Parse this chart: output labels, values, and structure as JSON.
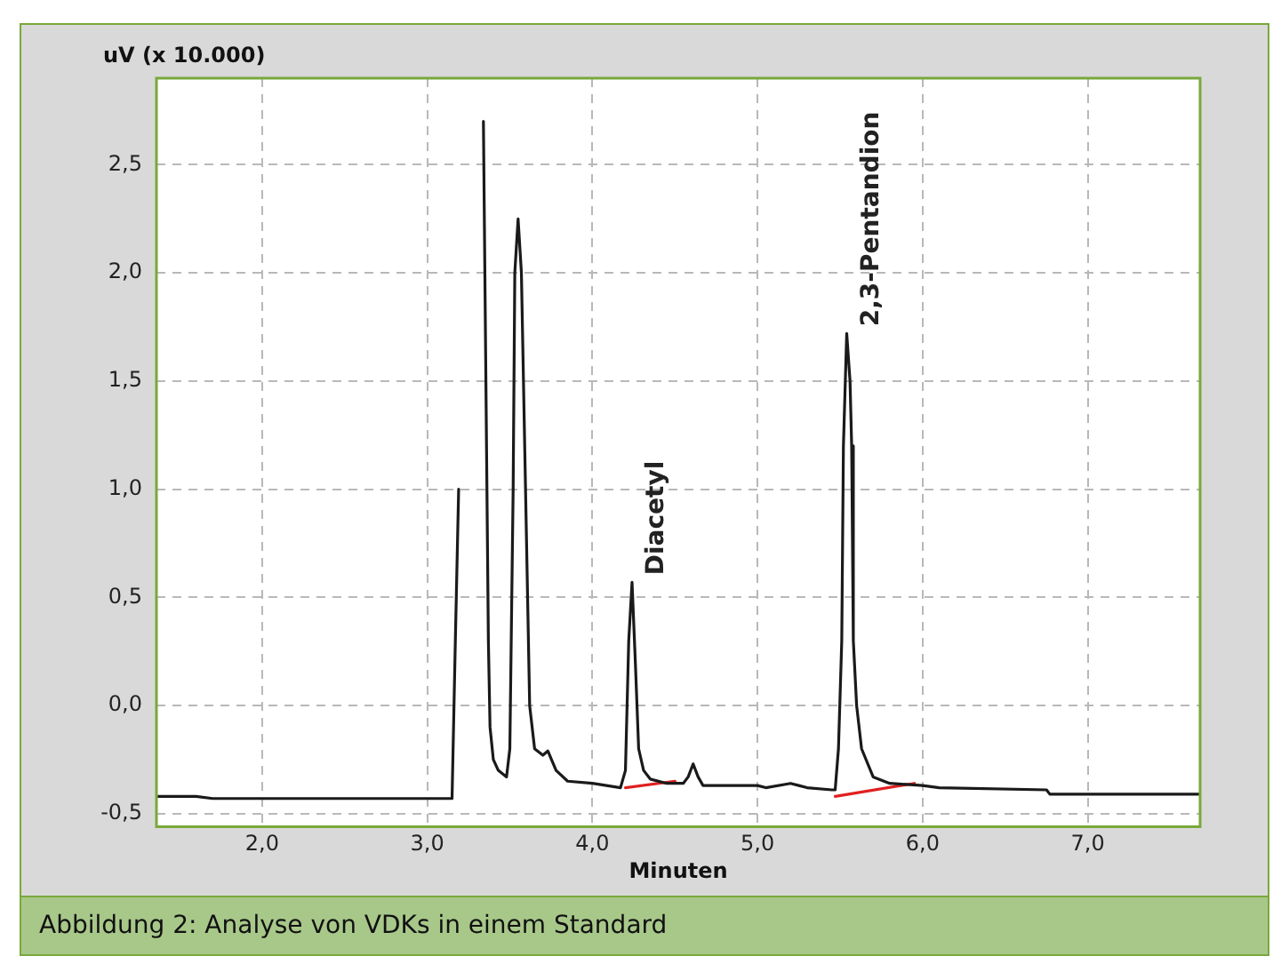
{
  "chart_data": {
    "type": "line",
    "xlabel": "Minuten",
    "ylabel": "uV (x 10.000)",
    "xlim": [
      1.36,
      7.68
    ],
    "ylim": [
      -0.56,
      2.9
    ],
    "xticks": [
      {
        "value": 2,
        "label": "2,0"
      },
      {
        "value": 3,
        "label": "3,0"
      },
      {
        "value": 4,
        "label": "4,0"
      },
      {
        "value": 5,
        "label": "5,0"
      },
      {
        "value": 6,
        "label": "6,0"
      },
      {
        "value": 7,
        "label": "7,0"
      }
    ],
    "yticks": [
      {
        "value": -0.5,
        "label": "-0,5"
      },
      {
        "value": 0,
        "label": "0,0"
      },
      {
        "value": 0.5,
        "label": "0,5"
      },
      {
        "value": 1,
        "label": "1,0"
      },
      {
        "value": 1.5,
        "label": "1,5"
      },
      {
        "value": 2,
        "label": "2,0"
      },
      {
        "value": 2.5,
        "label": "2,5"
      }
    ],
    "grid": true,
    "line_style": "solid",
    "marker": "none",
    "series": [
      {
        "color": "#1a1a1a",
        "x": [
          1.36,
          1.6,
          1.7,
          3.15,
          3.17,
          3.19,
          3.21,
          3.32,
          3.34,
          3.36,
          3.37,
          3.38,
          3.4,
          3.43,
          3.48,
          3.5,
          3.52,
          3.53,
          3.55,
          3.57,
          3.58,
          3.6,
          3.62,
          3.65,
          3.7,
          3.73,
          3.78,
          3.85,
          4.0,
          4.17,
          4.2,
          4.22,
          4.24,
          4.26,
          4.28,
          4.31,
          4.35,
          4.45,
          4.55,
          4.58,
          4.61,
          4.64,
          4.67,
          5.0,
          5.05,
          5.2,
          5.25,
          5.3,
          5.45,
          5.47,
          5.49,
          5.51,
          5.52,
          5.54,
          5.56,
          5.57,
          5.58,
          5.6,
          5.63,
          5.7,
          5.8,
          6.0,
          6.1,
          6.75,
          6.77,
          7.68
        ],
        "values": [
          -0.42,
          -0.42,
          -0.43,
          -0.43,
          0.3,
          1.0,
          null,
          null,
          2.7,
          1.1,
          0.3,
          -0.1,
          -0.25,
          -0.3,
          -0.33,
          -0.2,
          1.0,
          2.0,
          2.25,
          2.0,
          1.6,
          0.8,
          0.0,
          -0.2,
          -0.23,
          -0.21,
          -0.3,
          -0.35,
          -0.36,
          -0.38,
          -0.3,
          0.3,
          0.57,
          0.2,
          -0.2,
          -0.3,
          -0.34,
          -0.36,
          -0.36,
          -0.33,
          -0.27,
          -0.33,
          -0.37,
          -0.37,
          -0.38,
          -0.36,
          -0.37,
          -0.38,
          -0.39,
          -0.39,
          -0.2,
          0.3,
          1.2,
          1.72,
          1.5,
          1.2,
          0.3,
          0.0,
          -0.2,
          -0.33,
          -0.36,
          -0.37,
          -0.38,
          -0.39,
          -0.41,
          -0.41
        ]
      },
      {
        "color": "#e02020",
        "x": [
          4.2,
          4.5,
          4.51,
          5.47,
          5.95
        ],
        "values": [
          -0.38,
          -0.35,
          null,
          -0.42,
          -0.36
        ]
      }
    ],
    "annotations": [
      {
        "text": "Diacetyl",
        "x": 4.24,
        "y": 0.57
      },
      {
        "text": "2,3-Pentandion",
        "x": 5.54,
        "y": 1.72
      },
      "Abbildung 2: Analyse von VDKs in einem Standard"
    ]
  }
}
